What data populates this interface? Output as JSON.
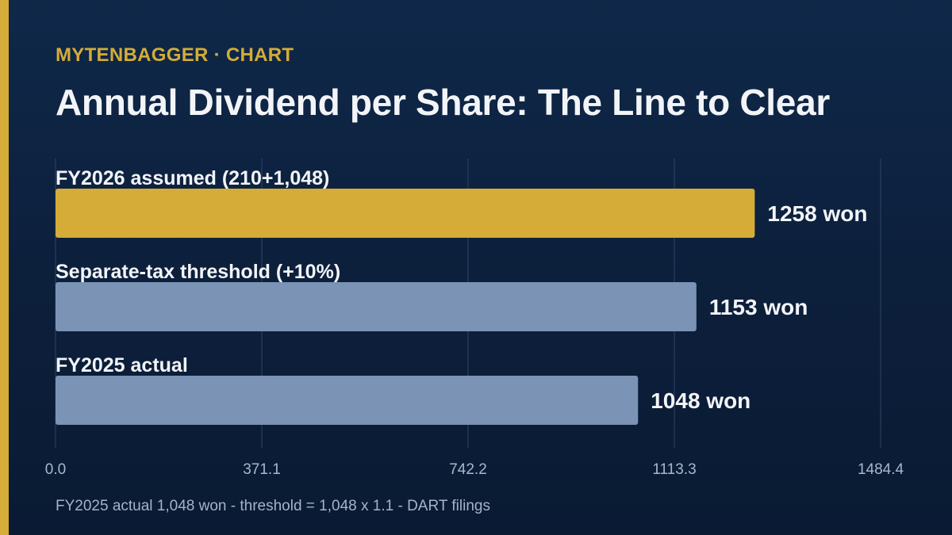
{
  "header": {
    "brand": "MYTENBAGGER · CHART",
    "title": "Annual Dividend per Share: The Line to Clear"
  },
  "footer": {
    "note": "FY2025 actual 1,048 won - threshold = 1,048 x 1.1 - DART filings"
  },
  "colors": {
    "highlight": "#d4ac37",
    "bar": "#7b93b5",
    "grid": "#2c4566",
    "label": "#f2f4f8",
    "tick": "#a9b7cb",
    "background": "#0c1f3b"
  },
  "chart_data": {
    "type": "bar",
    "orientation": "horizontal",
    "categories": [
      "FY2026 assumed (210+1,048)",
      "Separate-tax threshold (+10%)",
      "FY2025 actual"
    ],
    "values": [
      1258,
      1153,
      1048
    ],
    "value_labels": [
      "1258 won",
      "1153 won",
      "1048 won"
    ],
    "highlighted": [
      true,
      false,
      false
    ],
    "xlim": [
      0,
      1484.4
    ],
    "xticks": [
      0,
      371.1,
      742.2,
      1113.3,
      1484.4
    ],
    "xtick_labels": [
      "0.0",
      "371.1",
      "742.2",
      "1113.3",
      "1484.4"
    ],
    "grid": "vertical",
    "legend": "none",
    "title": "Annual Dividend per Share: The Line to Clear",
    "xlabel": "",
    "ylabel": ""
  }
}
